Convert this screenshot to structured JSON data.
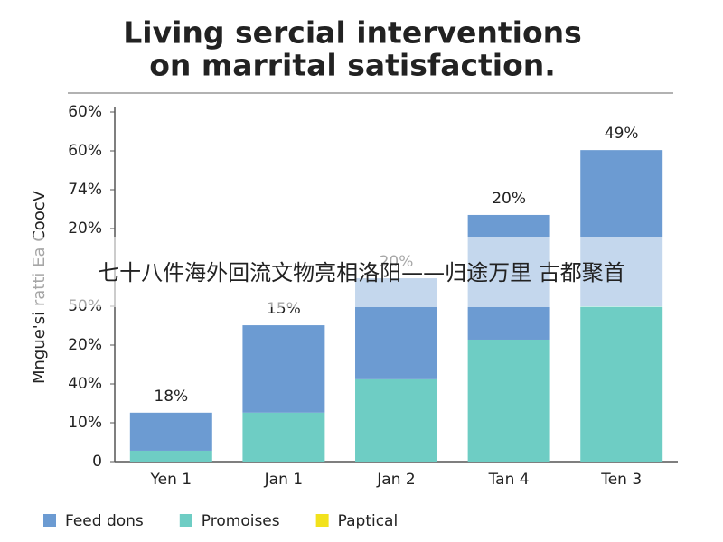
{
  "chart_data": {
    "type": "stacked_bar",
    "title": [
      "Living sercial interventions",
      "on marrital satisfaction."
    ],
    "ylabel": "Mngue'si ratti Ea CoocV",
    "categories": [
      "Yen 1",
      "Jan 1",
      "Jan 2",
      "Tan 4",
      "Ten 3"
    ],
    "series": [
      {
        "name": "Promoises",
        "color": "#6ecdc4",
        "values": [
          2.8,
          12.6,
          21.2,
          31.4,
          40
        ]
      },
      {
        "name": "Feed dons",
        "color": "#6c9bd2",
        "values": [
          9.8,
          22.5,
          26,
          32.1,
          40.2
        ]
      },
      {
        "name": "Paptical",
        "color": "#f2e21c",
        "values": [
          null,
          null,
          null,
          null,
          null
        ]
      }
    ],
    "legend_order": [
      "Feed dons",
      "Promoises",
      "Paptical"
    ],
    "annotations": [
      "18%",
      "15%",
      "20%",
      "20%",
      "49%"
    ],
    "ylim": [
      0,
      90
    ],
    "yticks": [
      0,
      {
        "value": 10,
        "label": "10%"
      },
      {
        "value": 20,
        "label": "40%"
      },
      {
        "value": 30,
        "label": "20%"
      },
      {
        "value": 40,
        "label": "50%"
      },
      {
        "value": 60,
        "label": "20%"
      },
      {
        "value": 70,
        "label": "74%"
      },
      {
        "value": 80,
        "label": "60%"
      },
      {
        "value": 90,
        "label": "60%"
      }
    ],
    "grid": false,
    "overlay_caption": "七十八件海外回流文物亮相洛阳——归途万里 古都聚首"
  }
}
